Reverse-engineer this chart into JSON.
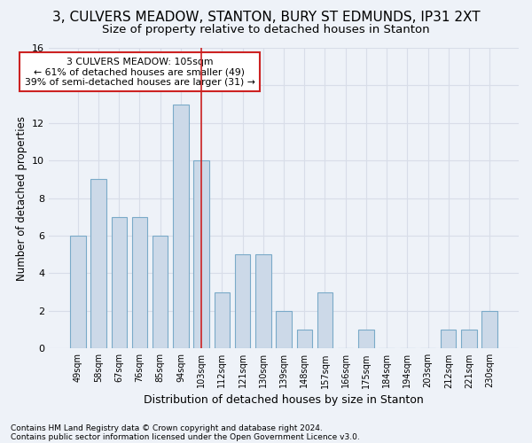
{
  "title": "3, CULVERS MEADOW, STANTON, BURY ST EDMUNDS, IP31 2XT",
  "subtitle": "Size of property relative to detached houses in Stanton",
  "xlabel": "Distribution of detached houses by size in Stanton",
  "ylabel": "Number of detached properties",
  "categories": [
    "49sqm",
    "58sqm",
    "67sqm",
    "76sqm",
    "85sqm",
    "94sqm",
    "103sqm",
    "112sqm",
    "121sqm",
    "130sqm",
    "139sqm",
    "148sqm",
    "157sqm",
    "166sqm",
    "175sqm",
    "184sqm",
    "194sqm",
    "203sqm",
    "212sqm",
    "221sqm",
    "230sqm"
  ],
  "values": [
    6,
    9,
    7,
    7,
    6,
    13,
    10,
    3,
    5,
    5,
    2,
    1,
    3,
    0,
    1,
    0,
    0,
    0,
    1,
    1,
    2
  ],
  "bar_color": "#ccd9e8",
  "bar_edge_color": "#7aaac8",
  "highlight_index": 6,
  "highlight_line_color": "#cc2222",
  "ylim": [
    0,
    16
  ],
  "yticks": [
    0,
    2,
    4,
    6,
    8,
    10,
    12,
    14,
    16
  ],
  "annotation_text": "3 CULVERS MEADOW: 105sqm\n← 61% of detached houses are smaller (49)\n39% of semi-detached houses are larger (31) →",
  "annotation_box_color": "#ffffff",
  "annotation_box_edge_color": "#cc2222",
  "footer_line1": "Contains HM Land Registry data © Crown copyright and database right 2024.",
  "footer_line2": "Contains public sector information licensed under the Open Government Licence v3.0.",
  "background_color": "#eef2f8",
  "grid_color": "#d8dde8",
  "title_fontsize": 11,
  "subtitle_fontsize": 9.5,
  "xlabel_fontsize": 9,
  "ylabel_fontsize": 8.5,
  "bar_width": 0.75
}
